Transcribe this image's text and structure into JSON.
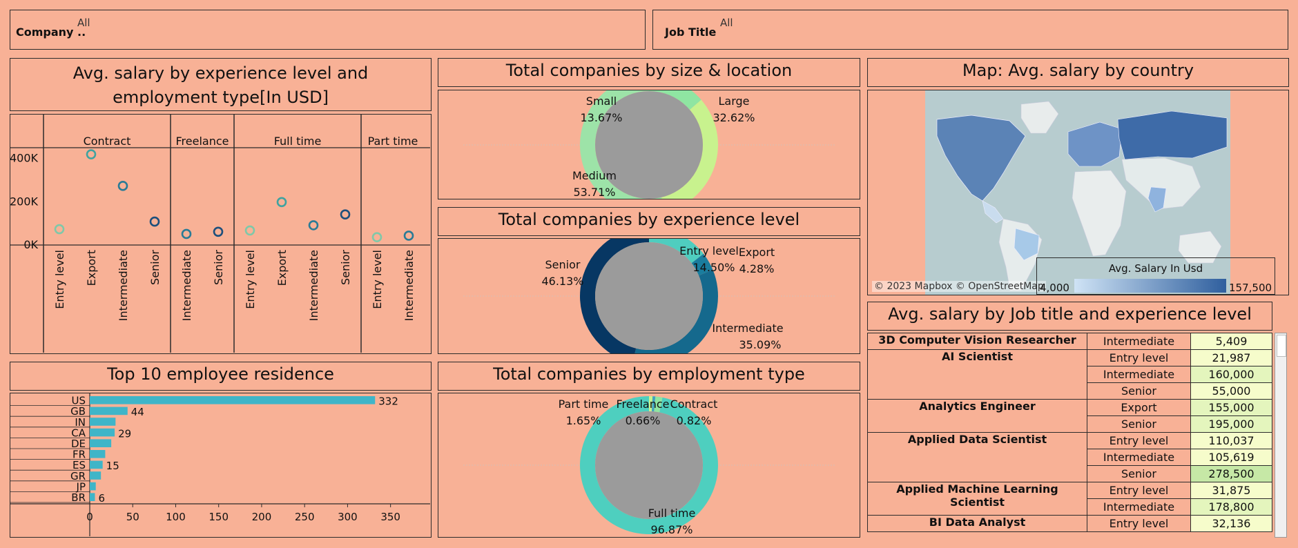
{
  "filters": {
    "company": {
      "label": "Company ..",
      "value": "All"
    },
    "job_title": {
      "label": "Job Title",
      "value": "All"
    }
  },
  "titles": {
    "salary_exp": "Avg. salary by experience level and employment type[In USD]",
    "size_loc": "Total companies by size & location",
    "map": "Map: Avg. salary by country",
    "exp_level": "Total companies by experience level",
    "residence": "Top 10 employee residence",
    "emp_type": "Total companies by employment type",
    "job_table": "Avg. salary by Job title and experience level"
  },
  "map": {
    "attribution": "© 2023 Mapbox © OpenStreetMap",
    "legend_title": "Avg. Salary In Usd",
    "legend_min": "4,000",
    "legend_max": "157,500"
  },
  "donut_size": {
    "small": {
      "label": "Small",
      "pct": "13.67%"
    },
    "large": {
      "label": "Large",
      "pct": "32.62%"
    },
    "medium": {
      "label": "Medium",
      "pct": "53.71%"
    }
  },
  "donut_exp": {
    "senior": {
      "label": "Senior",
      "pct": "46.13%"
    },
    "entry": {
      "label": "Entry level",
      "pct": "14.50%"
    },
    "export": {
      "label": "Export",
      "pct": "4.28%"
    },
    "intermediate": {
      "label": "Intermediate",
      "pct": "35.09%"
    }
  },
  "donut_emp": {
    "part": {
      "label": "Part time",
      "pct": "1.65%"
    },
    "free": {
      "label": "Freelance",
      "pct": "0.66%"
    },
    "contract": {
      "label": "Contract",
      "pct": "0.82%"
    },
    "full": {
      "label": "Full time",
      "pct": "96.87%"
    }
  },
  "job_table": [
    {
      "title": "3D Computer Vision Researcher",
      "rows": [
        {
          "level": "Intermediate",
          "value": "5,409"
        }
      ]
    },
    {
      "title": "AI Scientist",
      "rows": [
        {
          "level": "Entry level",
          "value": "21,987"
        },
        {
          "level": "Intermediate",
          "value": "160,000"
        },
        {
          "level": "Senior",
          "value": "55,000"
        }
      ]
    },
    {
      "title": "Analytics Engineer",
      "rows": [
        {
          "level": "Export",
          "value": "155,000"
        },
        {
          "level": "Senior",
          "value": "195,000"
        }
      ]
    },
    {
      "title": "Applied Data Scientist",
      "rows": [
        {
          "level": "Entry level",
          "value": "110,037"
        },
        {
          "level": "Intermediate",
          "value": "105,619"
        },
        {
          "level": "Senior",
          "value": "278,500"
        }
      ]
    },
    {
      "title": "Applied Machine Learning Scientist",
      "rows": [
        {
          "level": "Entry level",
          "value": "31,875"
        },
        {
          "level": "Intermediate",
          "value": "178,800"
        }
      ]
    },
    {
      "title": "BI Data Analyst",
      "rows": [
        {
          "level": "Entry level",
          "value": "32,136"
        }
      ]
    }
  ],
  "chart_data": [
    {
      "type": "scatter",
      "title": "Avg. salary by experience level and employment type[In USD]",
      "groups": [
        "Contract",
        "Freelance",
        "Full time",
        "Part time"
      ],
      "yticks": [
        "400K",
        "200K",
        "0K"
      ],
      "ylim": [
        0,
        440000
      ],
      "points": [
        {
          "group": "Contract",
          "level": "Entry level",
          "value": 70000,
          "color": "#7fc8a9"
        },
        {
          "group": "Contract",
          "level": "Export",
          "value": 416000,
          "color": "#3fa3a0"
        },
        {
          "group": "Contract",
          "level": "Intermediate",
          "value": 270000,
          "color": "#2a7b96"
        },
        {
          "group": "Contract",
          "level": "Senior",
          "value": 105000,
          "color": "#1d4f7c"
        },
        {
          "group": "Freelance",
          "level": "Intermediate",
          "value": 48000,
          "color": "#2a7b96"
        },
        {
          "group": "Freelance",
          "level": "Senior",
          "value": 58000,
          "color": "#1d4f7c"
        },
        {
          "group": "Full time",
          "level": "Entry level",
          "value": 64000,
          "color": "#7fc8a9"
        },
        {
          "group": "Full time",
          "level": "Export",
          "value": 195000,
          "color": "#3fa3a0"
        },
        {
          "group": "Full time",
          "level": "Intermediate",
          "value": 88000,
          "color": "#2a7b96"
        },
        {
          "group": "Full time",
          "level": "Senior",
          "value": 138000,
          "color": "#1d4f7c"
        },
        {
          "group": "Part time",
          "level": "Entry level",
          "value": 33000,
          "color": "#7fc8a9"
        },
        {
          "group": "Part time",
          "level": "Intermediate",
          "value": 40000,
          "color": "#2a7b96"
        }
      ]
    },
    {
      "type": "bar",
      "title": "Top 10 employee residence",
      "categories": [
        "US",
        "GB",
        "IN",
        "CA",
        "DE",
        "FR",
        "ES",
        "GR",
        "JP",
        "BR"
      ],
      "values": [
        332,
        44,
        30,
        29,
        25,
        18,
        15,
        13,
        7,
        6
      ],
      "value_labels": {
        "US": "332",
        "GB": "44",
        "CA": "29",
        "ES": "15",
        "BR": "6"
      },
      "xticks": [
        0,
        50,
        100,
        150,
        200,
        250,
        300,
        350
      ],
      "xlim": [
        0,
        380
      ],
      "color": "#3FB5C8"
    },
    {
      "type": "pie",
      "title": "Total companies by size & location",
      "labels": [
        "Small",
        "Large",
        "Medium"
      ],
      "values": [
        13.67,
        32.62,
        53.71
      ],
      "colors": [
        "#8FE5A2",
        "#C8F28E",
        "#9DE3A8"
      ]
    },
    {
      "type": "pie",
      "title": "Total companies by experience level",
      "labels": [
        "Entry level",
        "Export",
        "Intermediate",
        "Senior"
      ],
      "values": [
        14.5,
        4.28,
        35.09,
        46.13
      ],
      "colors": [
        "#4FCDBF",
        "#1A7D9E",
        "#15698D",
        "#073763"
      ]
    },
    {
      "type": "pie",
      "title": "Total companies by employment type",
      "labels": [
        "Contract",
        "Freelance",
        "Part time",
        "Full time"
      ],
      "values": [
        0.82,
        0.66,
        1.65,
        96.87
      ],
      "colors": [
        "#C8F28E",
        "#3FA3C0",
        "#8FE5A2",
        "#4ECFBF"
      ]
    }
  ]
}
